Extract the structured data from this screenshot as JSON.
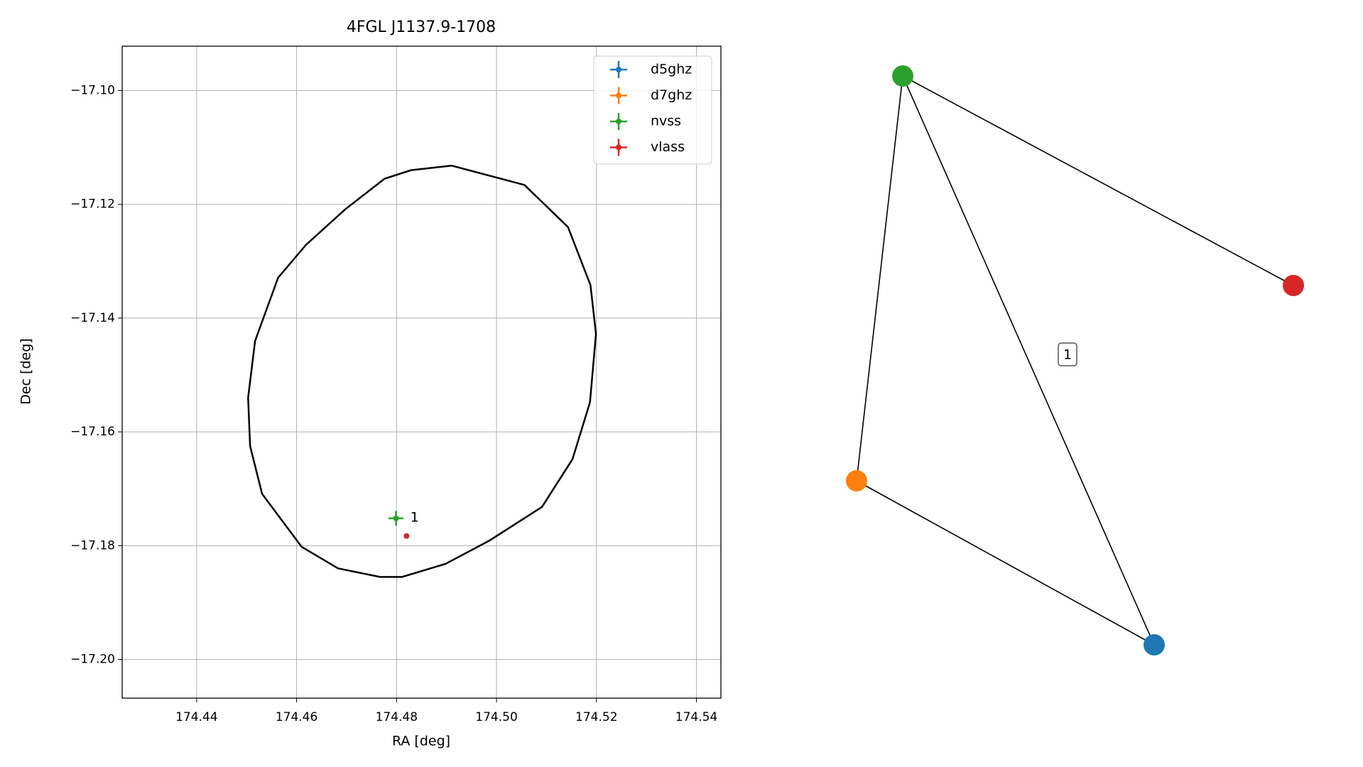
{
  "chart_data": [
    {
      "type": "errorbar",
      "title": "4FGL J1137.9-1708",
      "xlabel": "RA [deg]",
      "ylabel": "Dec [deg]",
      "xlim": [
        174.4251,
        174.5449
      ],
      "ylim": [
        -17.2068,
        -17.0922
      ],
      "xticks": [
        {
          "value": 174.44,
          "label": "174.44"
        },
        {
          "value": 174.46,
          "label": "174.46"
        },
        {
          "value": 174.48,
          "label": "174.48"
        },
        {
          "value": 174.5,
          "label": "174.50"
        },
        {
          "value": 174.52,
          "label": "174.52"
        },
        {
          "value": 174.54,
          "label": "174.54"
        }
      ],
      "yticks": [
        {
          "value": -17.1,
          "label": "−17.10"
        },
        {
          "value": -17.12,
          "label": "−17.12"
        },
        {
          "value": -17.14,
          "label": "−17.14"
        },
        {
          "value": -17.16,
          "label": "−17.16"
        },
        {
          "value": -17.18,
          "label": "−17.18"
        },
        {
          "value": -17.2,
          "label": "−17.20"
        }
      ],
      "grid": true,
      "legend": "upper right",
      "ellipse": {
        "color": "#000000",
        "x": [
          174.491,
          174.5056,
          174.5143,
          174.5188,
          174.5199,
          174.5187,
          174.5152,
          174.5091,
          174.4986,
          174.4898,
          174.4811,
          174.4767,
          174.4683,
          174.461,
          174.4531,
          174.4507,
          174.4503,
          174.4517,
          174.4563,
          174.4619,
          174.4697,
          174.4776,
          174.4829,
          174.491
        ],
        "y": [
          -17.1132,
          -17.1166,
          -17.124,
          -17.1342,
          -17.1428,
          -17.1548,
          -17.1648,
          -17.1732,
          -17.1791,
          -17.1832,
          -17.1855,
          -17.1855,
          -17.184,
          -17.1802,
          -17.1709,
          -17.1625,
          -17.154,
          -17.144,
          -17.1329,
          -17.1271,
          -17.1209,
          -17.1155,
          -17.114,
          -17.1132
        ]
      },
      "series": [
        {
          "name": "d5ghz",
          "color": "#1f77b4",
          "x": [],
          "y": [],
          "xerr": [],
          "yerr": []
        },
        {
          "name": "d7ghz",
          "color": "#ff7f0e",
          "x": [],
          "y": [],
          "xerr": [],
          "yerr": []
        },
        {
          "name": "nvss",
          "color": "#2ca02c",
          "x": [
            174.4799
          ],
          "y": [
            -17.1752
          ],
          "xerr": [
            0.0015
          ],
          "yerr": [
            0.0013
          ]
        },
        {
          "name": "vlass",
          "color": "#d62728",
          "x": [
            174.482
          ],
          "y": [
            -17.1783
          ],
          "xerr": [
            0.0004
          ],
          "yerr": [
            0.0003
          ]
        }
      ],
      "annotations": [
        {
          "text": "1",
          "x": 174.4799,
          "y": -17.1752
        }
      ]
    },
    {
      "type": "graph",
      "label": "1"
    }
  ]
}
